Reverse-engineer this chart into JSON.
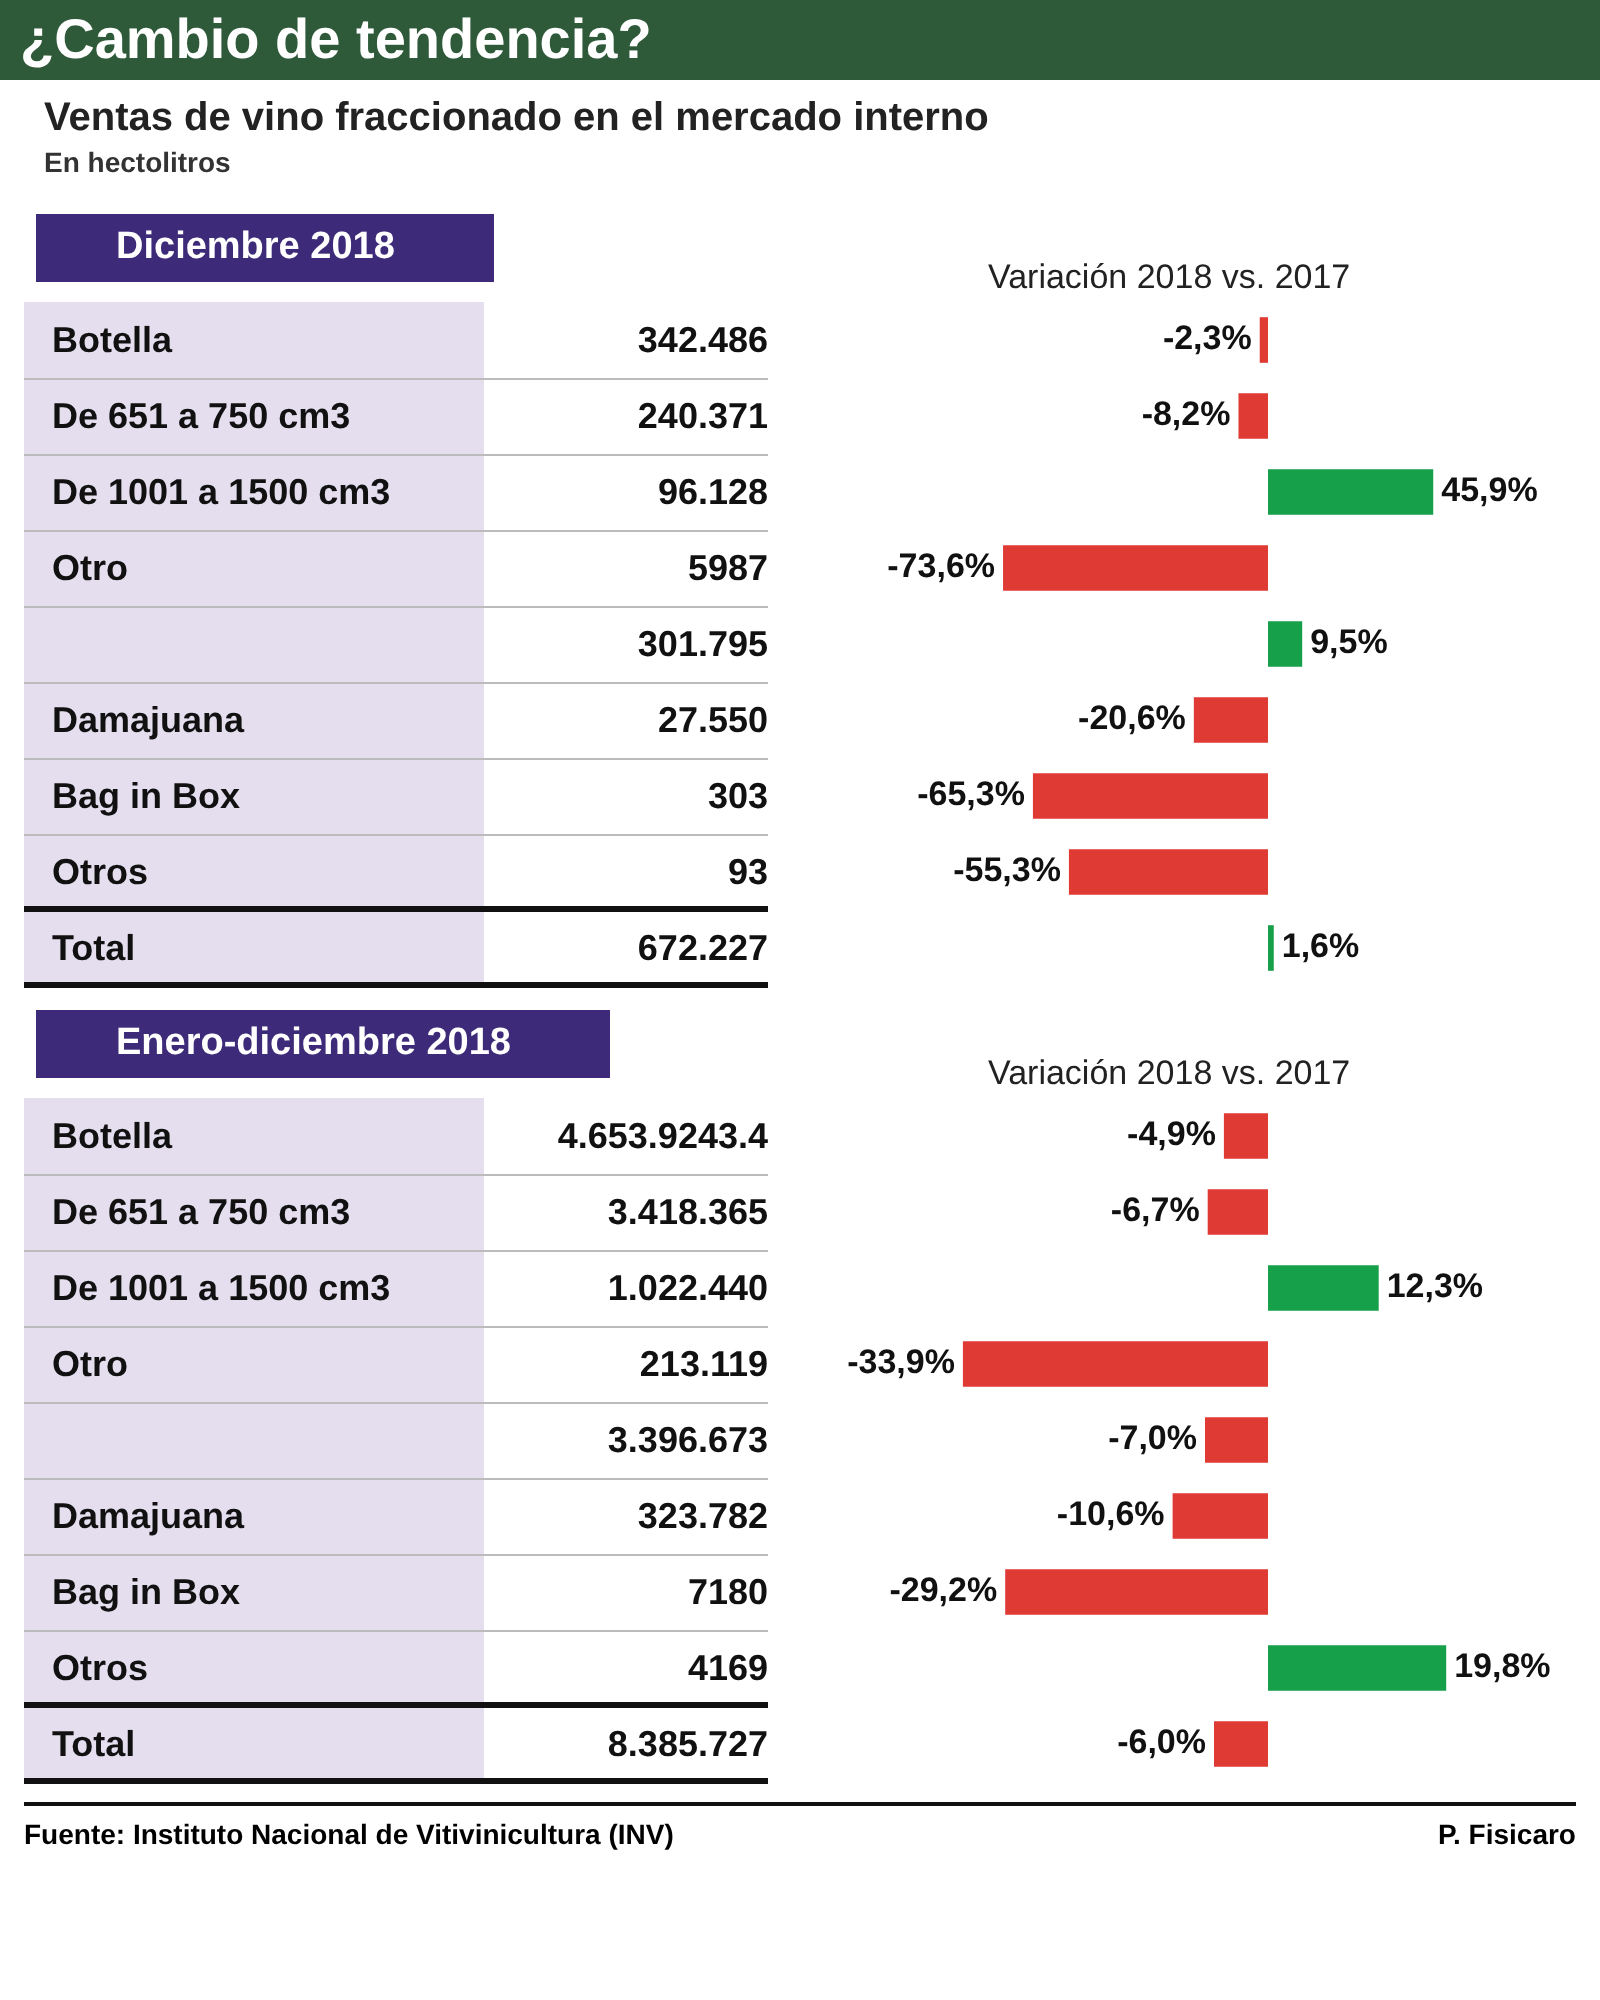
{
  "chart_data": [
    {
      "type": "other",
      "title": "¿Cambio de tendencia?",
      "subtitle": "Ventas de vino fraccionado en el mercado interno",
      "annotations": [
        "En hectolitros"
      ]
    },
    {
      "type": "bar",
      "orientation": "horizontal",
      "title": "Diciembre 2018",
      "xlabel": "Variación 2018 vs. 2017",
      "categories": [
        "Botella",
        "De 651 a 750 cm3",
        "De 1001 a 1500 cm3",
        "Otro",
        null,
        "Damajuana",
        "Bag in Box",
        "Otros",
        "Total"
      ],
      "values": [
        -2.3,
        -8.2,
        45.9,
        -73.6,
        9.5,
        -20.6,
        -65.3,
        -55.3,
        1.6
      ],
      "value_labels": [
        "-2,3%",
        "-8,2%",
        "45,9%",
        "-73,6%",
        "9,5%",
        "-20,6%",
        "-65,3%",
        "-55,3%",
        "1,6%"
      ],
      "colors": [
        "#e03a35",
        "#e03a35",
        "#16a04a",
        "#e03a35",
        "#16a04a",
        "#e03a35",
        "#e03a35",
        "#e03a35",
        "#16a04a"
      ],
      "tick_labels": "y"
    },
    {
      "type": "other",
      "categories": [
        null,
        null,
        null,
        null,
        null,
        null,
        null,
        null,
        null
      ],
      "values": [
        342486,
        240371,
        96128,
        5987,
        301795,
        27550,
        303,
        93,
        672227
      ],
      "value_labels": [
        "342.486",
        "240.371",
        "96.128",
        "5987",
        "301.795",
        "27.550",
        "303",
        "93",
        "672.227"
      ]
    },
    {
      "type": "bar",
      "orientation": "horizontal",
      "title": "Enero-diciembre 2018",
      "xlabel": "Variación 2018 vs. 2017",
      "categories": [
        "Botella",
        "De 651 a 750 cm3",
        "De 1001 a 1500 cm3",
        "Otro",
        null,
        "Damajuana",
        "Bag in Box",
        "Otros",
        "Total"
      ],
      "values": [
        -4.9,
        -6.7,
        12.3,
        -33.9,
        -7.0,
        -10.6,
        -29.2,
        19.8,
        -6.0
      ],
      "value_labels": [
        "-4,9%",
        "-6,7%",
        "12,3%",
        "-33,9%",
        "-7,0%",
        "-10,6%",
        "-29,2%",
        "19,8%",
        "-6,0%"
      ],
      "colors": [
        "#e03a35",
        "#e03a35",
        "#16a04a",
        "#e03a35",
        "#e03a35",
        "#e03a35",
        "#e03a35",
        "#16a04a",
        "#e03a35"
      ],
      "tick_labels": "y"
    },
    {
      "type": "other",
      "categories": [
        null,
        null,
        null,
        null,
        null,
        null,
        null,
        null,
        null
      ],
      "values": [
        4653924,
        3418365,
        1022440,
        213119,
        3396673,
        323782,
        7180,
        4169,
        8385727
      ],
      "value_labels": [
        "4.653.9243.4",
        "3.418.365",
        "1.022.440",
        "213.119",
        "3.396.673",
        "323.782",
        "7180",
        "4169",
        "8.385.727"
      ],
      "annotations": [
        "Fuente: Instituto Nacional de Vitivinicultura (INV)",
        "P. Fisicaro"
      ]
    }
  ]
}
